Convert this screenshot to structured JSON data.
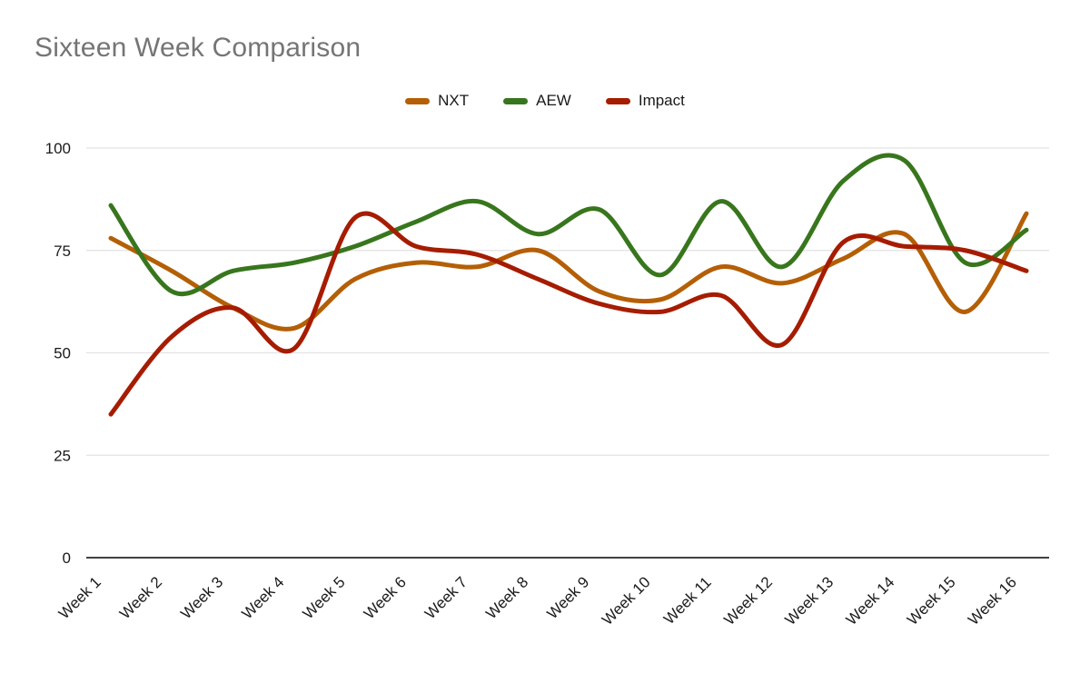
{
  "title": "Sixteen Week Comparison",
  "chart_data": {
    "type": "line",
    "smooth": true,
    "title": "Sixteen Week Comparison",
    "xlabel": "",
    "ylabel": "",
    "categories": [
      "Week 1",
      "Week 2",
      "Week 3",
      "Week 4",
      "Week 5",
      "Week 6",
      "Week 7",
      "Week 8",
      "Week 9",
      "Week 10",
      "Week 11",
      "Week 12",
      "Week 13",
      "Week 14",
      "Week 15",
      "Week 16"
    ],
    "series": [
      {
        "name": "NXT",
        "color": "#B45F06",
        "values": [
          78,
          70,
          61,
          56,
          68,
          72,
          71,
          75,
          65,
          63,
          71,
          67,
          73,
          79,
          60,
          84
        ]
      },
      {
        "name": "AEW",
        "color": "#38761D",
        "values": [
          86,
          65,
          70,
          72,
          76,
          82,
          87,
          79,
          85,
          69,
          87,
          71,
          92,
          97,
          72,
          80
        ]
      },
      {
        "name": "Impact",
        "color": "#A61C00",
        "values": [
          35,
          54,
          61,
          51,
          83,
          76,
          74,
          68,
          62,
          60,
          64,
          52,
          77,
          76,
          75,
          70
        ]
      }
    ],
    "ylim": [
      0,
      100
    ],
    "yticks": [
      0,
      25,
      50,
      75,
      100
    ],
    "grid": true,
    "legend_position": "top",
    "style": {
      "title_color": "#757575",
      "axis_text_color": "#1a1a1a",
      "gridline_color": "#e2e2e2",
      "baseline_color": "#424242",
      "background": "#ffffff",
      "line_width": 5
    }
  }
}
